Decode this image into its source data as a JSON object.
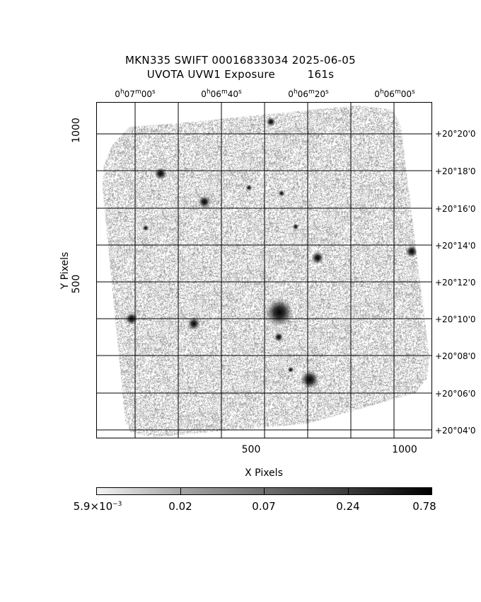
{
  "title": {
    "line1": "MKN335 SWIFT 00016833034 2025-06-05",
    "line2": "UVOTA UVW1 Exposure         161s"
  },
  "axes": {
    "xlabel": "X Pixels",
    "ylabel": "Y Pixels",
    "x_ticks": [
      "500",
      "1000"
    ],
    "y_ticks": [
      "500",
      "1000"
    ],
    "ra_ticks": [
      {
        "h": "0",
        "m": "07",
        "s": "00"
      },
      {
        "h": "0",
        "m": "06",
        "s": "40"
      },
      {
        "h": "0",
        "m": "06",
        "s": "20"
      },
      {
        "h": "0",
        "m": "06",
        "s": "00"
      }
    ],
    "dec_ticks": [
      "+20°20'0",
      "+20°18'0",
      "+20°16'0",
      "+20°14'0",
      "+20°12'0",
      "+20°10'0",
      "+20°08'0",
      "+20°06'0",
      "+20°04'0"
    ]
  },
  "colorbar": {
    "labels": [
      "5.9×10⁻³",
      "0.02",
      "0.07",
      "0.24",
      "0.78"
    ],
    "first_mantissa": "5.9×10",
    "first_exponent": "−3",
    "gradient": [
      "#f2f2f2",
      "#a6a6a6",
      "#6e6e6e",
      "#3a3a3a",
      "#000000"
    ]
  },
  "colors": {
    "noise": "#8c8c8c",
    "grid": "#000000",
    "background": "#ffffff"
  }
}
